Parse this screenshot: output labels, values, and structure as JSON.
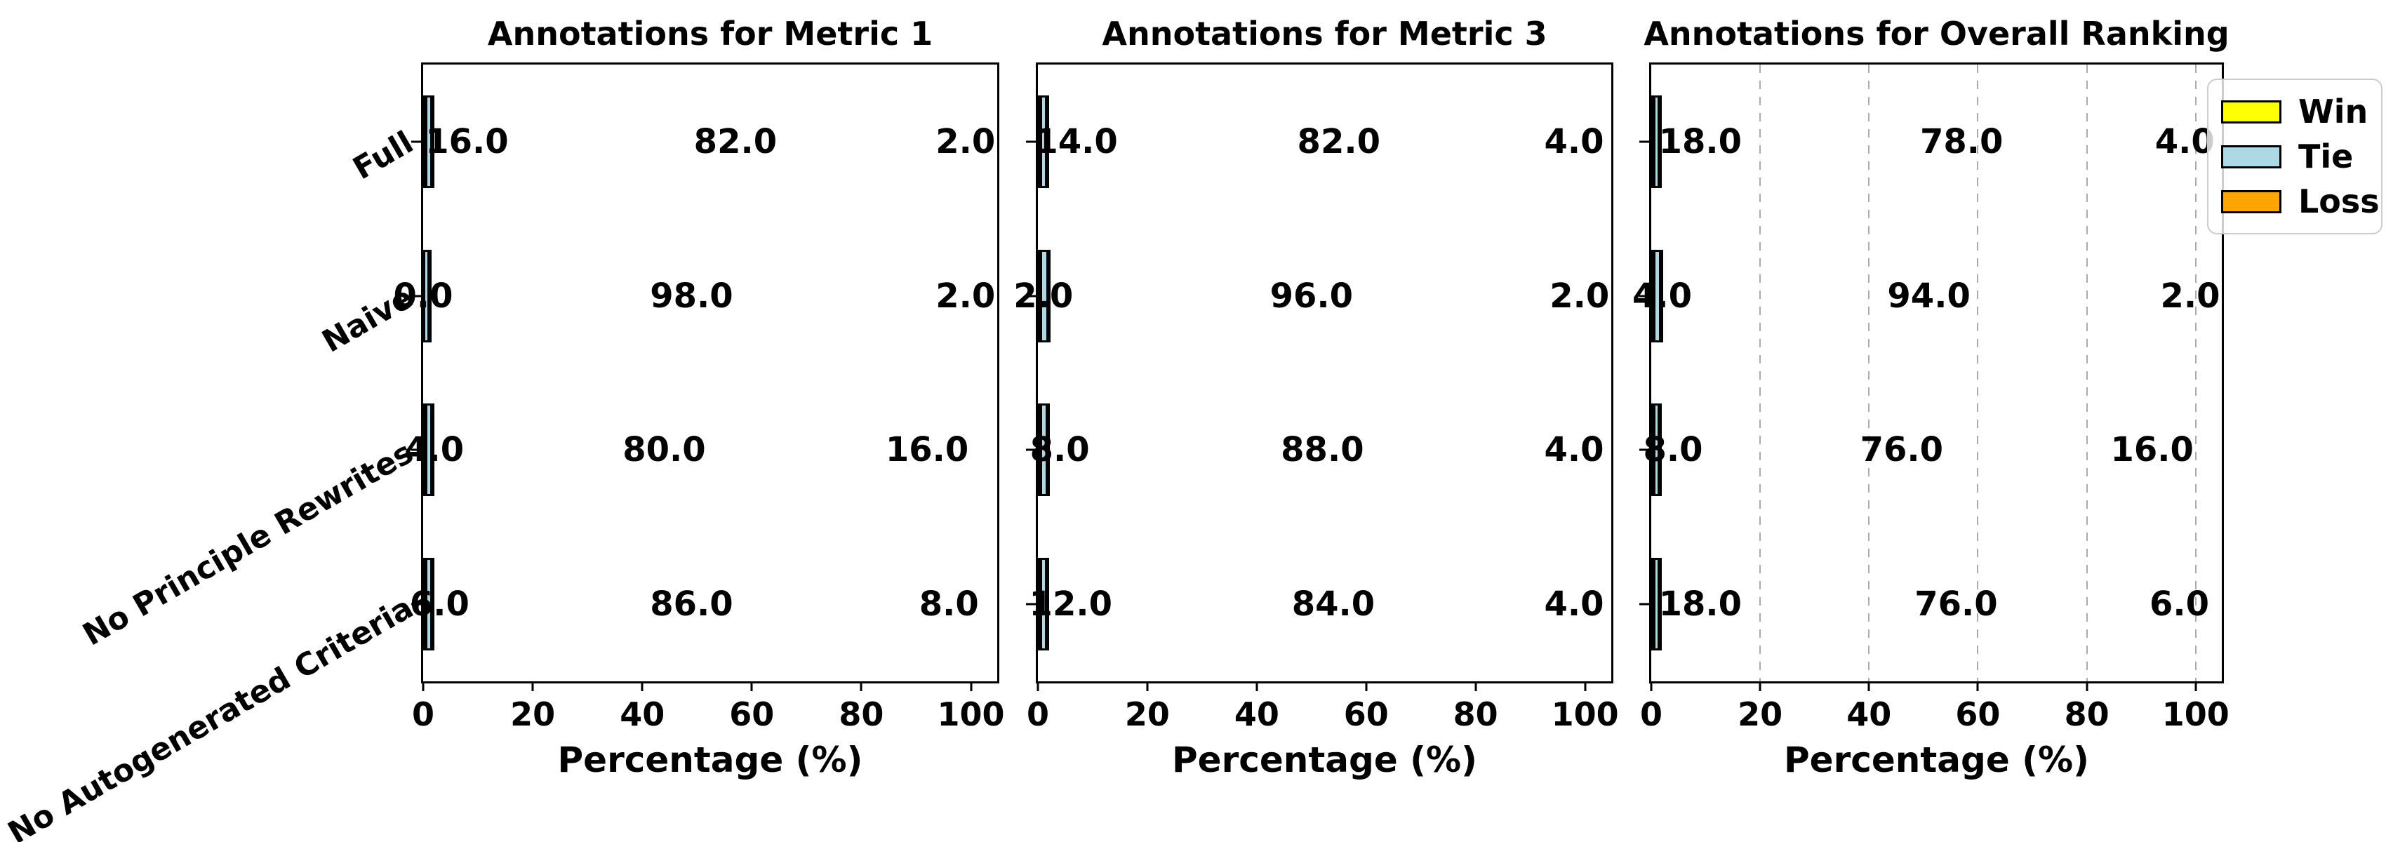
{
  "figure": {
    "background": "#ffffff",
    "categories": [
      "Full",
      "Naive",
      "No Principle Rewrites",
      "No Autogenerated Criteria"
    ],
    "x_axis_label": "Percentage (%)",
    "x_ticks": [
      0,
      20,
      40,
      60,
      80,
      100
    ],
    "value_decimals": 1,
    "colors": {
      "win": "#FFFF00",
      "tie": "#ADD8E6",
      "loss": "#FFA500",
      "grid": "#ababab",
      "axis": "#000000"
    },
    "legend": {
      "position": "top-right",
      "items": [
        {
          "label": "Win",
          "color": "#FFFF00"
        },
        {
          "label": "Tie",
          "color": "#ADD8E6"
        },
        {
          "label": "Loss",
          "color": "#FFA500"
        }
      ]
    }
  },
  "chart_data": [
    {
      "type": "bar",
      "orientation": "horizontal",
      "stacked": true,
      "title": "Annotations for Metric 1",
      "xlabel": "Percentage (%)",
      "xlim": [
        0,
        104.8
      ],
      "x_ticks": [
        0,
        20,
        40,
        60,
        80,
        100
      ],
      "grid": false,
      "categories": [
        "Full",
        "Naive",
        "No Principle Rewrites",
        "No Autogenerated Criteria"
      ],
      "series": [
        {
          "name": "Win",
          "color": "#FFFF00",
          "values": [
            16.0,
            0.0,
            4.0,
            6.0
          ]
        },
        {
          "name": "Tie",
          "color": "#ADD8E6",
          "values": [
            82.0,
            98.0,
            80.0,
            86.0
          ]
        },
        {
          "name": "Loss",
          "color": "#FFA500",
          "values": [
            2.0,
            2.0,
            16.0,
            8.0
          ]
        }
      ]
    },
    {
      "type": "bar",
      "orientation": "horizontal",
      "stacked": true,
      "title": "Annotations for Metric 3",
      "xlabel": "Percentage (%)",
      "xlim": [
        0,
        104.8
      ],
      "x_ticks": [
        0,
        20,
        40,
        60,
        80,
        100
      ],
      "grid": false,
      "categories": [
        "Full",
        "Naive",
        "No Principle Rewrites",
        "No Autogenerated Criteria"
      ],
      "series": [
        {
          "name": "Win",
          "color": "#FFFF00",
          "values": [
            14.0,
            2.0,
            8.0,
            12.0
          ]
        },
        {
          "name": "Tie",
          "color": "#ADD8E6",
          "values": [
            82.0,
            96.0,
            88.0,
            84.0
          ]
        },
        {
          "name": "Loss",
          "color": "#FFA500",
          "values": [
            4.0,
            2.0,
            4.0,
            4.0
          ]
        }
      ]
    },
    {
      "type": "bar",
      "orientation": "horizontal",
      "stacked": true,
      "title": "Annotations for Overall Ranking",
      "xlabel": "Percentage (%)",
      "xlim": [
        0,
        104.8
      ],
      "x_ticks": [
        0,
        20,
        40,
        60,
        80,
        100
      ],
      "grid": true,
      "categories": [
        "Full",
        "Naive",
        "No Principle Rewrites",
        "No Autogenerated Criteria"
      ],
      "series": [
        {
          "name": "Win",
          "color": "#FFFF00",
          "values": [
            18.0,
            4.0,
            8.0,
            18.0
          ]
        },
        {
          "name": "Tie",
          "color": "#ADD8E6",
          "values": [
            78.0,
            94.0,
            76.0,
            76.0
          ]
        },
        {
          "name": "Loss",
          "color": "#FFA500",
          "values": [
            4.0,
            2.0,
            16.0,
            6.0
          ]
        }
      ]
    }
  ]
}
